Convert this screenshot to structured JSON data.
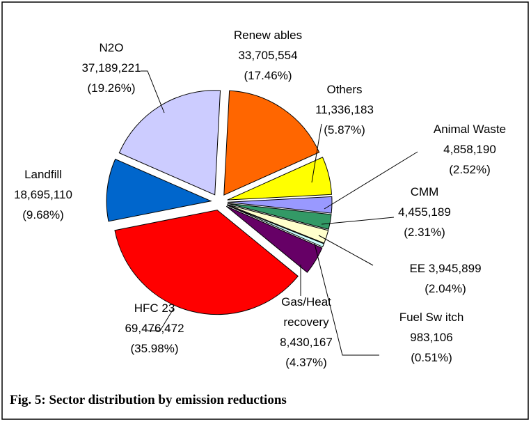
{
  "chart_data": {
    "type": "pie",
    "title": "Fig. 5: Sector distribution by emission reductions",
    "categories": [
      "Renew ables",
      "Others",
      "Animal Waste",
      "CMM",
      "EE",
      "Fuel Sw itch",
      "Gas/Heat recovery",
      "HFC 23",
      "Landfill",
      "N2O"
    ],
    "values": [
      33705554,
      11336183,
      4858190,
      4455189,
      3945899,
      983106,
      8430167,
      69476472,
      18695110,
      37189221
    ],
    "value_labels": [
      "33,705,554",
      "11,336,183",
      "4,858,190",
      "4,455,189",
      "3,945,899",
      "983,106",
      "8,430,167",
      "69,476,472",
      "18,695,110",
      "37,189,221"
    ],
    "percents": [
      17.46,
      5.87,
      2.52,
      2.31,
      2.04,
      0.51,
      4.37,
      35.98,
      9.68,
      19.26
    ],
    "percent_labels": [
      "(17.46%)",
      "(5.87%)",
      "(2.52%)",
      "(2.31%)",
      "(2.04%)",
      "(0.51%)",
      "(4.37%)",
      "(35.98%)",
      "(9.68%)",
      "(19.26%)"
    ],
    "colors": [
      "#ff6600",
      "#ffff00",
      "#9999ff",
      "#339966",
      "#ffffcc",
      "#ccffff",
      "#660066",
      "#ff0000",
      "#0066cc",
      "#ccccff"
    ]
  }
}
